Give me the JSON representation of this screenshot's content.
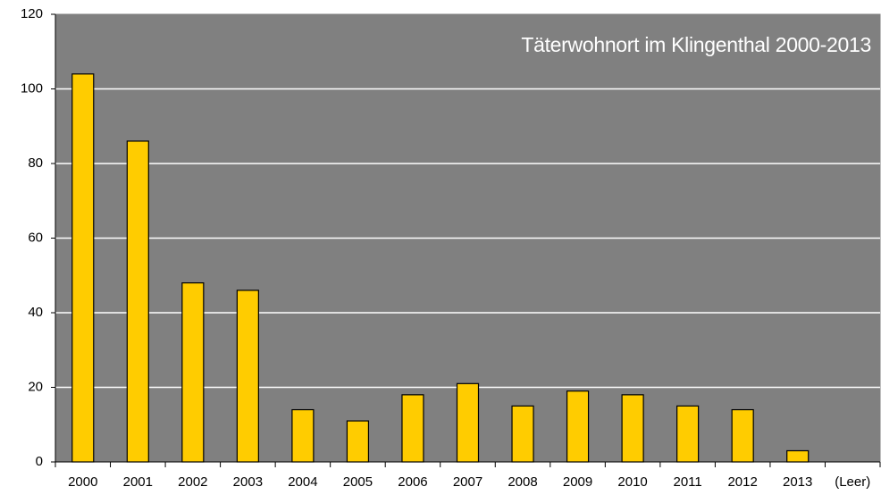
{
  "chart_data": {
    "type": "bar",
    "title": "Täterwohnort im Klingenthal 2000-2013",
    "categories": [
      "2000",
      "2001",
      "2002",
      "2003",
      "2004",
      "2005",
      "2006",
      "2007",
      "2008",
      "2009",
      "2010",
      "2011",
      "2012",
      "2013",
      "(Leer)"
    ],
    "values": [
      104,
      86,
      48,
      46,
      14,
      11,
      18,
      21,
      15,
      19,
      18,
      15,
      14,
      3,
      null
    ],
    "color": "#ffcc00",
    "plot_background": "#808080",
    "ylim": [
      0,
      120
    ],
    "yticks": [
      0,
      20,
      40,
      60,
      80,
      100,
      120
    ],
    "grid": true
  }
}
